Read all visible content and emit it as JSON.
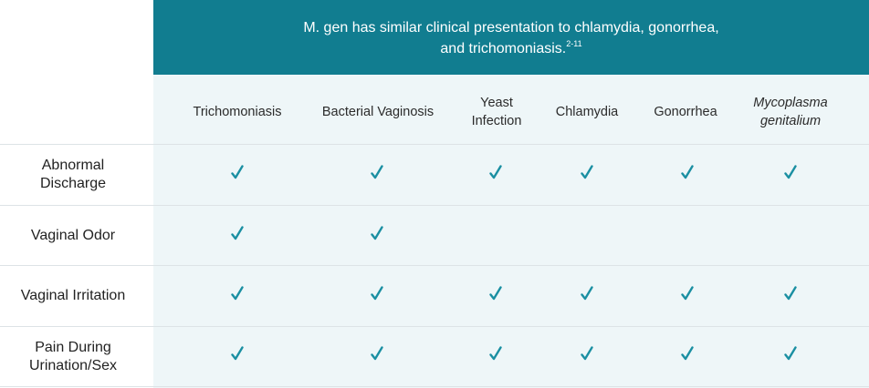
{
  "banner": {
    "line1": "M. gen has similar clinical presentation to chlamydia, gonorrhea,",
    "line2": "and trichomoniasis.",
    "ref": "2-11"
  },
  "columns": [
    {
      "l1": "Trichomoniasis",
      "l2": ""
    },
    {
      "l1": "Bacterial Vaginosis",
      "l2": ""
    },
    {
      "l1": "Yeast",
      "l2": "Infection"
    },
    {
      "l1": "Chlamydia",
      "l2": ""
    },
    {
      "l1": "Gonorrhea",
      "l2": ""
    },
    {
      "l1": "Mycoplasma",
      "l2": "genitalium"
    }
  ],
  "rows": [
    {
      "l1": "Abnormal",
      "l2": "Discharge",
      "checks": [
        true,
        true,
        true,
        true,
        true,
        true
      ]
    },
    {
      "l1": "Vaginal Odor",
      "l2": "",
      "checks": [
        true,
        true,
        false,
        false,
        false,
        false
      ]
    },
    {
      "l1": "Vaginal Irritation",
      "l2": "",
      "checks": [
        true,
        true,
        true,
        true,
        true,
        true
      ]
    },
    {
      "l1": "Pain During",
      "l2": "Urination/Sex",
      "checks": [
        true,
        true,
        true,
        true,
        true,
        true
      ]
    }
  ],
  "colors": {
    "banner": "#117d90",
    "check": "#1a8fa2",
    "panel": "#eef6f8"
  },
  "icons": {
    "check": "checkmark-icon"
  }
}
